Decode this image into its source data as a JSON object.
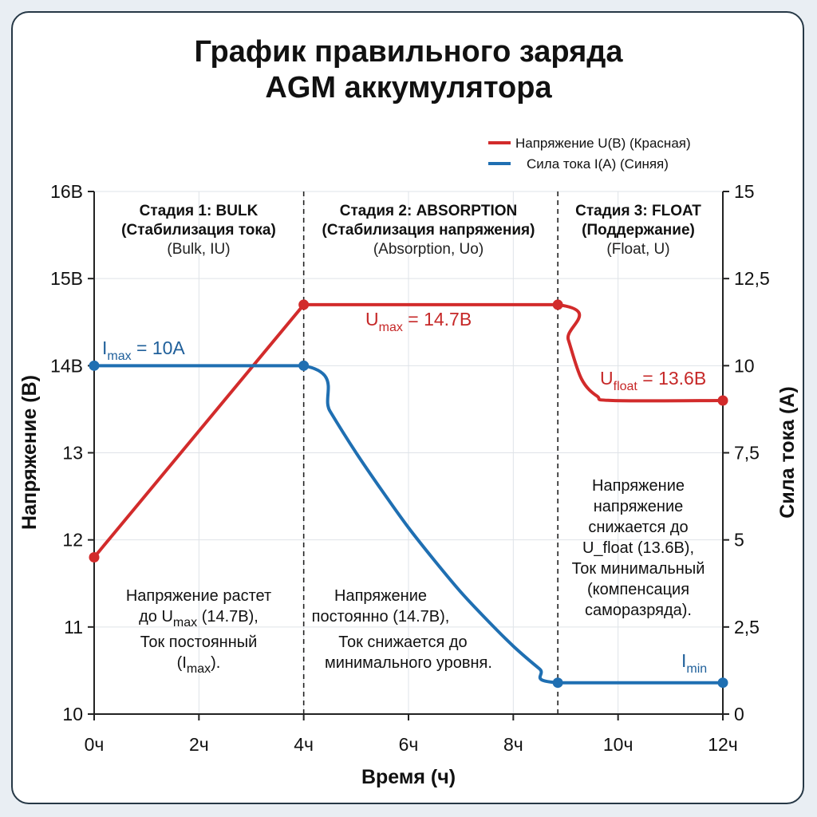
{
  "title_lines": [
    "График правильного заряда",
    "AGM аккумулятора"
  ],
  "legend": [
    {
      "label": "Напряжение U(В) (Красная)",
      "color": "#d22b2b"
    },
    {
      "label": "Сила тока I(А) (Синяя)",
      "color": "#1f6fb2"
    }
  ],
  "stages": [
    {
      "title": "Стадия 1: BULK",
      "subtitle": "(Стабилизация тока)",
      "mode": "(Bulk, IU)"
    },
    {
      "title": "Стадия 2: ABSORPTION",
      "subtitle": "(Стабилизация напряжения)",
      "mode": "(Absorption, Uo)"
    },
    {
      "title": "Стадия 3: FLOAT",
      "subtitle": "(Поддержание)",
      "mode": "(Float, U)"
    }
  ],
  "notes": [
    [
      "Напряжение растет",
      "до U_max (14.7В),",
      "Ток постоянный",
      "(I_max)."
    ],
    [
      "Напряжение",
      "постоянно (14.7В),",
      "Ток снижается до",
      "минимального уровня."
    ],
    [
      "Напряжение",
      "напряжение",
      "снижается до",
      "U_float (13.6В),",
      "Ток минимальный",
      "(компенсация",
      "саморазряда)."
    ]
  ],
  "value_labels": {
    "umax": {
      "main": "U",
      "sub": "max",
      "rest": " = 14.7В"
    },
    "ufloat": {
      "main": "U",
      "sub": "float",
      "rest": " = 13.6В"
    },
    "imax": {
      "main": "I",
      "sub": "max",
      "rest": " = 10А"
    },
    "imin": {
      "main": "I",
      "sub": "min",
      "rest": ""
    }
  },
  "chart_data": {
    "type": "line",
    "xlabel": "Время (ч)",
    "ylabel": "Напряжение (В)",
    "y2label": "Сила тока (А)",
    "xlim": [
      0,
      12
    ],
    "ylim": [
      10,
      16
    ],
    "y2lim": [
      0,
      15
    ],
    "x_ticks": [
      "0ч",
      "2ч",
      "4ч",
      "6ч",
      "8ч",
      "10ч",
      "12ч"
    ],
    "y_ticks": [
      "10",
      "11",
      "12",
      "13",
      "14В",
      "15В",
      "16В"
    ],
    "y2_ticks": [
      "0",
      "2,5",
      "5",
      "7,5",
      "10",
      "12,5",
      "15"
    ],
    "stage_boundaries": [
      4,
      8.85
    ],
    "grid": true,
    "legend_position": "top-right",
    "series": [
      {
        "name": "Напряжение U(В) (Красная)",
        "axis": "left",
        "color": "#d22b2b",
        "x": [
          0,
          4,
          8.85,
          9.05,
          9.3,
          9.6,
          9.9,
          12
        ],
        "values": [
          11.8,
          14.7,
          14.7,
          14.3,
          13.85,
          13.65,
          13.6,
          13.6
        ],
        "markers_x": [
          0,
          4,
          8.85,
          12
        ]
      },
      {
        "name": "Сила тока I(А) (Синяя)",
        "axis": "right",
        "color": "#1f6fb2",
        "x": [
          0,
          4,
          4.5,
          5,
          5.5,
          6,
          6.5,
          7,
          7.5,
          8,
          8.5,
          8.85,
          12
        ],
        "values": [
          10,
          10,
          8.7,
          7.5,
          6.4,
          5.35,
          4.4,
          3.5,
          2.7,
          1.95,
          1.3,
          0.9,
          0.9
        ],
        "markers_x": [
          0,
          4,
          8.85,
          12
        ]
      }
    ]
  }
}
